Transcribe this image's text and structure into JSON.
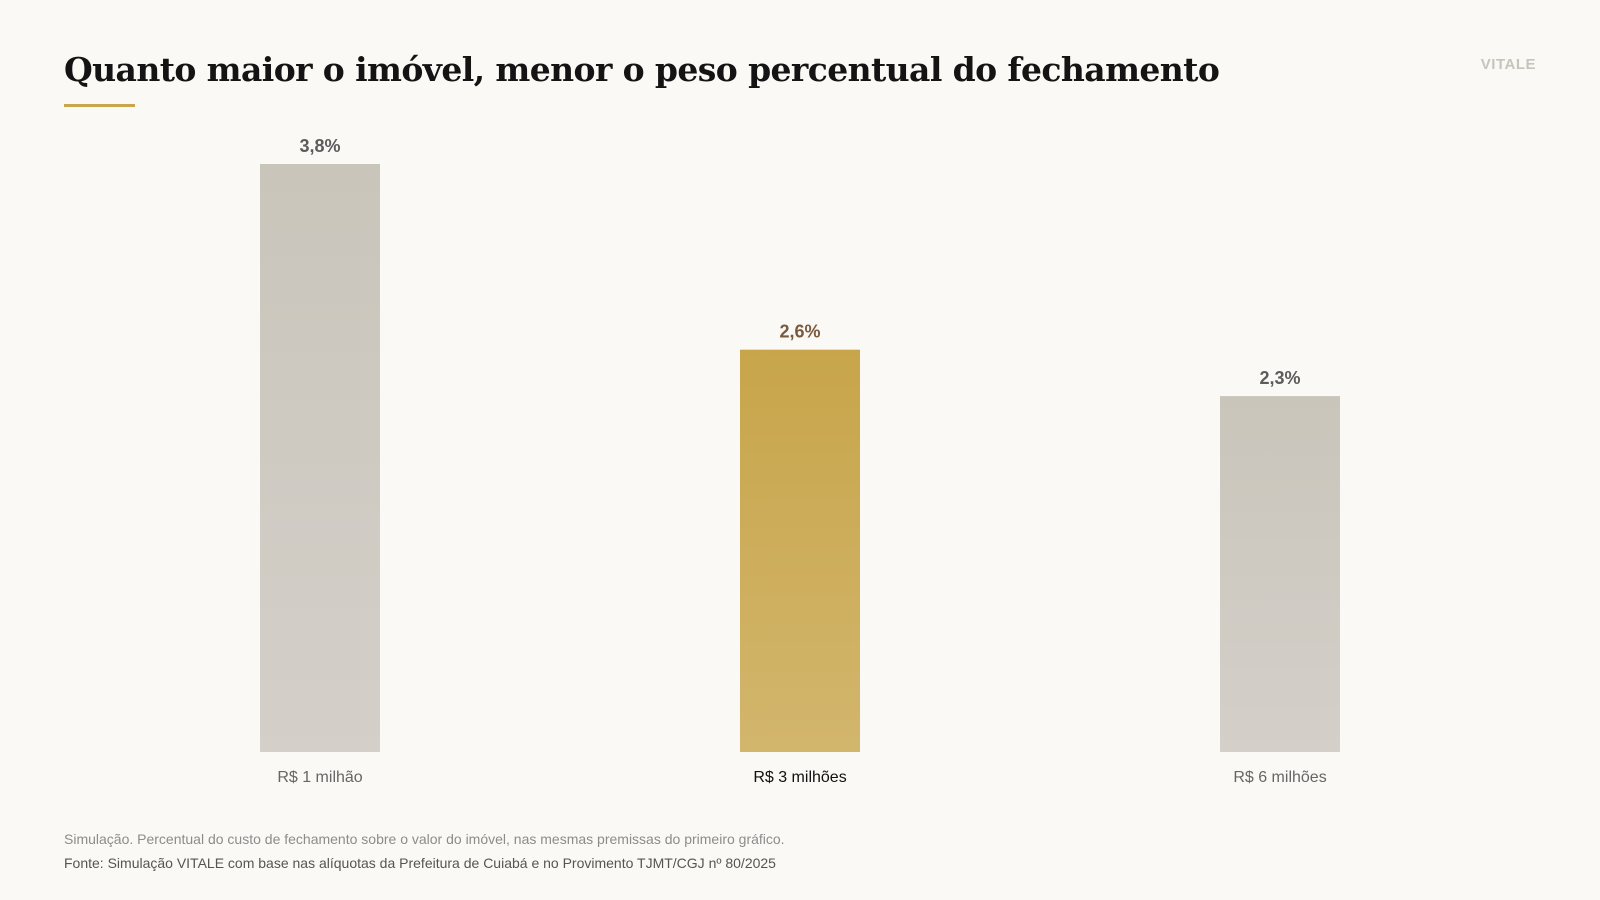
{
  "header": {
    "title": "Quanto maior o imóvel, menor o peso percentual do fechamento",
    "brand": "VITALE"
  },
  "colors": {
    "background": "#faf9f6",
    "accent": "#c9a64c",
    "bar_neutral_top": "#c9c5bb",
    "bar_neutral_bottom": "#d4cfc9",
    "bar_highlight_top": "#c8a54b",
    "bar_highlight_bottom": "#d2b66c",
    "label_neutral": "#5c5c5c",
    "label_highlight": "#7a5a3c",
    "category_neutral": "#666666",
    "category_highlight": "#111111",
    "brand": "#c8c4bc"
  },
  "chart_data": {
    "type": "bar",
    "categories": [
      "R$ 1 milhão",
      "R$ 3 milhões",
      "R$ 6 milhões"
    ],
    "values": [
      3.8,
      2.6,
      2.3
    ],
    "value_labels": [
      "3,8%",
      "2,6%",
      "2,3%"
    ],
    "highlight_index": 1,
    "ylim": [
      0,
      3.8
    ],
    "grid": false,
    "legend": "none"
  },
  "footer": {
    "note": "Simulação. Percentual do custo de fechamento sobre o valor do imóvel, nas mesmas premissas do primeiro gráfico.",
    "source": "Fonte: Simulação VITALE com base nas alíquotas da Prefeitura de Cuiabá e no Provimento TJMT/CGJ nº 80/2025"
  }
}
